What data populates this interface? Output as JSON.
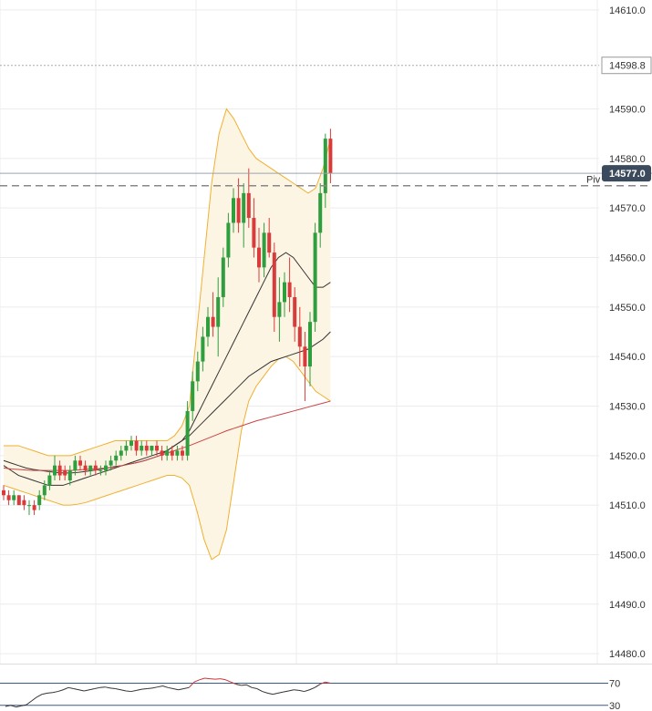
{
  "chart_data": {
    "type": "candlestick",
    "price_axis": {
      "ticks": [
        "14610.0",
        "14590.0",
        "14580.0",
        "14570.0",
        "14560.0",
        "14550.0",
        "14540.0",
        "14530.0",
        "14520.0",
        "14510.0",
        "14500.0",
        "14490.0",
        "14480.0"
      ],
      "tick_values": [
        14610,
        14590,
        14580,
        14570,
        14560,
        14550,
        14540,
        14530,
        14520,
        14510,
        14500,
        14490,
        14480
      ],
      "range": [
        14478,
        14612
      ],
      "grid": true
    },
    "reference_lines": [
      {
        "label": "14598.8",
        "value": 14598.8,
        "style": "dotted"
      },
      {
        "label": "14577.0",
        "value": 14577.0,
        "style": "solid",
        "tag_color": "#3b4a5c"
      },
      {
        "label": "Piv",
        "value": 14574.5,
        "style": "dashed"
      }
    ],
    "candles": [
      [
        14513,
        14514,
        14511,
        14512
      ],
      [
        14512,
        14513,
        14510,
        14511
      ],
      [
        14511,
        14513,
        14510,
        14512
      ],
      [
        14512,
        14512,
        14510,
        14510
      ],
      [
        14511,
        14512,
        14509,
        14510
      ],
      [
        14510,
        14511,
        14508,
        14510
      ],
      [
        14510,
        14511,
        14508,
        14509
      ],
      [
        14510,
        14513,
        14509,
        14512
      ],
      [
        14512,
        14515,
        14511,
        14514
      ],
      [
        14514,
        14517,
        14513,
        14516
      ],
      [
        14516,
        14520,
        14515,
        14518
      ],
      [
        14518,
        14519,
        14515,
        14516
      ],
      [
        14517,
        14518,
        14515,
        14516
      ],
      [
        14515,
        14518,
        14514,
        14517
      ],
      [
        14517,
        14520,
        14516,
        14519
      ],
      [
        14519,
        14520,
        14517,
        14518
      ],
      [
        14518,
        14519,
        14516,
        14517
      ],
      [
        14517,
        14518,
        14516,
        14518
      ],
      [
        14518,
        14519,
        14516,
        14517
      ],
      [
        14517,
        14518,
        14516,
        14517
      ],
      [
        14517,
        14519,
        14516,
        14518
      ],
      [
        14518,
        14520,
        14517,
        14519
      ],
      [
        14519,
        14521,
        14518,
        14520
      ],
      [
        14520,
        14522,
        14519,
        14521
      ],
      [
        14521,
        14523,
        14520,
        14522
      ],
      [
        14522,
        14524,
        14521,
        14523
      ],
      [
        14523,
        14524,
        14520,
        14521
      ],
      [
        14521,
        14523,
        14520,
        14522
      ],
      [
        14522,
        14523,
        14520,
        14521
      ],
      [
        14521,
        14522,
        14520,
        14522
      ],
      [
        14522,
        14523,
        14520,
        14521
      ],
      [
        14521,
        14522,
        14519,
        14520
      ],
      [
        14520,
        14522,
        14519,
        14521
      ],
      [
        14521,
        14522,
        14519,
        14520
      ],
      [
        14520,
        14522,
        14519,
        14521
      ],
      [
        14521,
        14522,
        14519,
        14520
      ],
      [
        14520,
        14531,
        14519,
        14529
      ],
      [
        14529,
        14537,
        14527,
        14535
      ],
      [
        14535,
        14541,
        14533,
        14539
      ],
      [
        14539,
        14546,
        14537,
        14544
      ],
      [
        14544,
        14550,
        14542,
        14548
      ],
      [
        14548,
        14553,
        14544,
        14546
      ],
      [
        14546,
        14556,
        14540,
        14552
      ],
      [
        14552,
        14562,
        14550,
        14560
      ],
      [
        14560,
        14569,
        14558,
        14567
      ],
      [
        14567,
        14574,
        14565,
        14572
      ],
      [
        14572,
        14576,
        14565,
        14567
      ],
      [
        14567,
        14575,
        14562,
        14573
      ],
      [
        14573,
        14578,
        14566,
        14568
      ],
      [
        14568,
        14572,
        14560,
        14562
      ],
      [
        14562,
        14566,
        14555,
        14558
      ],
      [
        14558,
        14567,
        14556,
        14565
      ],
      [
        14565,
        14568,
        14560,
        14561
      ],
      [
        14561,
        14563,
        14545,
        14548
      ],
      [
        14548,
        14556,
        14543,
        14551
      ],
      [
        14551,
        14557,
        14548,
        14555
      ],
      [
        14555,
        14560,
        14549,
        14552
      ],
      [
        14552,
        14554,
        14543,
        14546
      ],
      [
        14546,
        14550,
        14538,
        14542
      ],
      [
        14542,
        14545,
        14531,
        14538
      ],
      [
        14538,
        14549,
        14534,
        14547
      ],
      [
        14547,
        14567,
        14545,
        14565
      ],
      [
        14565,
        14575,
        14562,
        14573
      ],
      [
        14573,
        14585,
        14570,
        14584
      ],
      [
        14584,
        14586,
        14575,
        14577
      ]
    ],
    "moving_averages": [
      {
        "color": "#333333",
        "values": [
          14518,
          14517,
          14516,
          14515.5,
          14515,
          14514.5,
          14514,
          14514,
          14514,
          14514.5,
          14515,
          14515.5,
          14516,
          14516.5,
          14517,
          14517.5,
          14518,
          14518.5,
          14519,
          14519.5,
          14520,
          14520.5,
          14521,
          14522,
          14523,
          14525,
          14528,
          14531,
          14534,
          14537,
          14540,
          14543,
          14546,
          14549,
          14552,
          14555,
          14558,
          14560,
          14561,
          14560,
          14558,
          14556,
          14554,
          14554,
          14555
        ]
      },
      {
        "color": "#333333",
        "values": [
          14519,
          14518.5,
          14518,
          14517.5,
          14517.2,
          14517,
          14516.8,
          14516.6,
          14516.5,
          14516.5,
          14516.6,
          14516.8,
          14517,
          14517.2,
          14517.5,
          14517.8,
          14518,
          14518.3,
          14518.6,
          14519,
          14519.5,
          14520,
          14521,
          14522,
          14523,
          14524,
          14525.5,
          14527,
          14528.5,
          14530,
          14531.5,
          14533,
          14534.5,
          14536,
          14537,
          14538,
          14539,
          14539.5,
          14540,
          14540.5,
          14541,
          14541.5,
          14542.5,
          14543.5,
          14545
        ]
      },
      {
        "color": "#cc4444",
        "values": [
          14517.5,
          14517.3,
          14517.2,
          14517.1,
          14517,
          14517,
          14517,
          14517,
          14517,
          14517,
          14517.1,
          14517.2,
          14517.3,
          14517.4,
          14517.5,
          14517.7,
          14518,
          14518.3,
          14518.6,
          14519,
          14519.5,
          14520,
          14520.5,
          14521,
          14521.5,
          14522,
          14522.6,
          14523.2,
          14523.8,
          14524.4,
          14525,
          14525.5,
          14526,
          14526.5,
          14527,
          14527.4,
          14527.8,
          14528.2,
          14528.6,
          14529,
          14529.4,
          14529.8,
          14530.2,
          14530.6,
          14531
        ]
      }
    ],
    "bollinger": {
      "line_color": "#f0b030",
      "fill_color": "#fdf5e4",
      "upper": [
        14522,
        14522,
        14522,
        14521.5,
        14521,
        14520.5,
        14520,
        14520,
        14520,
        14520,
        14520.5,
        14521,
        14521.5,
        14522,
        14522.5,
        14523,
        14523,
        14523,
        14523,
        14523,
        14523,
        14523,
        14523,
        14524,
        14526,
        14530,
        14545,
        14560,
        14575,
        14585,
        14590,
        14588,
        14585,
        14582,
        14580,
        14579,
        14578,
        14577,
        14576,
        14575,
        14574,
        14573,
        14574,
        14578,
        14584
      ],
      "lower": [
        14514,
        14513.5,
        14513,
        14512.5,
        14512,
        14511.5,
        14511,
        14510.5,
        14510,
        14510,
        14510.2,
        14510.5,
        14511,
        14511.5,
        14512,
        14512.5,
        14513,
        14513.5,
        14514,
        14514.5,
        14515,
        14515.5,
        14516,
        14516,
        14515.5,
        14514,
        14509,
        14503,
        14499,
        14500,
        14505,
        14515,
        14525,
        14531,
        14534,
        14536,
        14538,
        14539.5,
        14540,
        14539,
        14537,
        14535,
        14533,
        14532,
        14531
      ]
    },
    "oscillator": {
      "levels": [
        "70",
        "30"
      ],
      "level_values": [
        70,
        30
      ],
      "overbought_color": "#cc3333",
      "line_color": "#333333",
      "values": [
        28,
        30,
        27,
        29,
        31,
        38,
        45,
        50,
        52,
        53,
        55,
        58,
        62,
        60,
        58,
        56,
        58,
        60,
        62,
        63,
        61,
        60,
        58,
        56,
        55,
        57,
        59,
        60,
        61,
        63,
        65,
        62,
        60,
        58,
        60,
        62,
        72,
        76,
        79,
        78,
        77,
        78,
        76,
        72,
        68,
        66,
        67,
        62,
        60,
        55,
        52,
        50,
        52,
        54,
        56,
        58,
        57,
        55,
        58,
        62,
        68,
        72,
        70
      ]
    }
  }
}
